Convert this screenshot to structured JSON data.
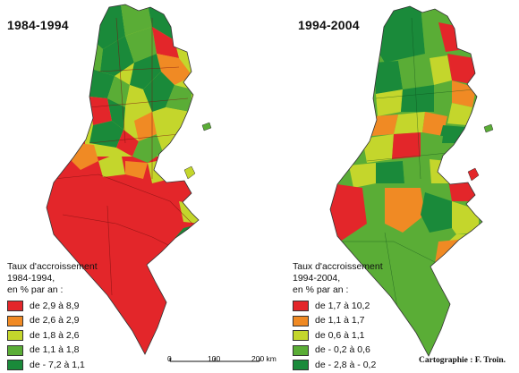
{
  "left_panel": {
    "title": "1984-1994",
    "legend": {
      "title_lines": [
        "Taux d'accroissement",
        "1984-1994,",
        "en % par an :"
      ],
      "classes": [
        {
          "label": "de 2,9 à 8,9",
          "color": "#e3262a"
        },
        {
          "label": "de 2,6 à 2,9",
          "color": "#f08a24"
        },
        {
          "label": "de 1,8 à 2,6",
          "color": "#c4d62c"
        },
        {
          "label": "de 1,1 à 1,8",
          "color": "#5aad36"
        },
        {
          "label": "de - 7,2 à 1,1",
          "color": "#1a8a3a"
        }
      ]
    }
  },
  "right_panel": {
    "title": "1994-2004",
    "legend": {
      "title_lines": [
        "Taux d'accroissement",
        "1994-2004,",
        "en % par an :"
      ],
      "classes": [
        {
          "label": "de 1,7 à 10,2",
          "color": "#e3262a"
        },
        {
          "label": "de 1,1 à 1,7",
          "color": "#f08a24"
        },
        {
          "label": "de 0,6 à 1,1",
          "color": "#c4d62c"
        },
        {
          "label": "de - 0,2 à 0,6",
          "color": "#5aad36"
        },
        {
          "label": "de - 2,8 à - 0,2",
          "color": "#1a8a3a"
        }
      ]
    }
  },
  "scale_bar": {
    "ticks": [
      "0",
      "100",
      "200 km"
    ]
  },
  "credit": "Cartographie : F. Troin."
}
